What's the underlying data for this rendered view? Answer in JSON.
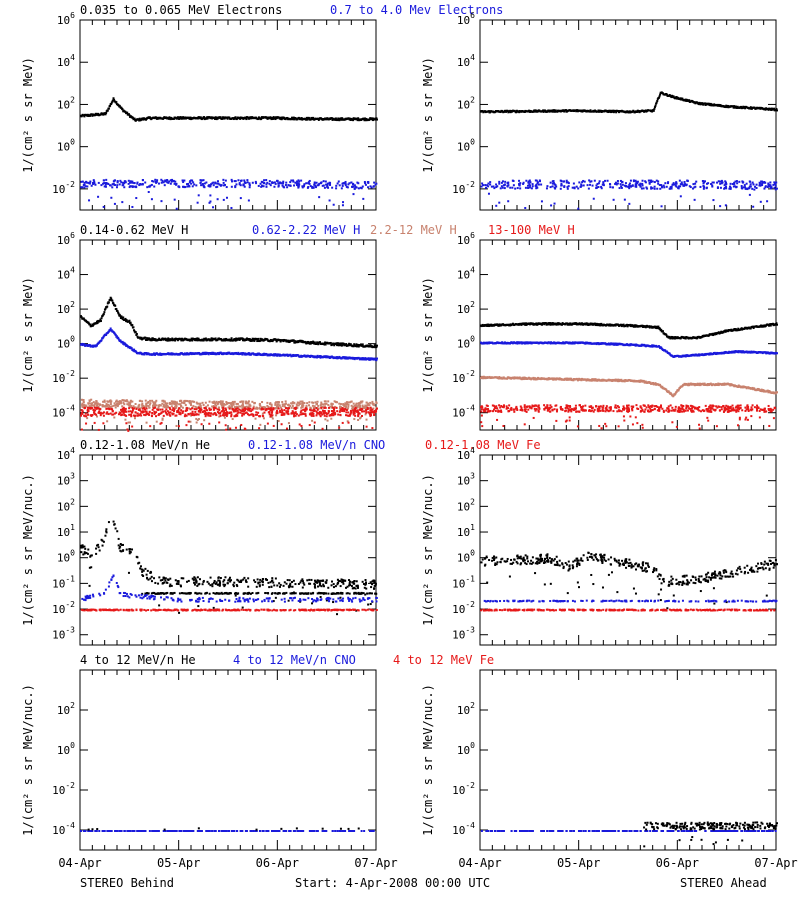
{
  "colors": {
    "black": "#000000",
    "blue": "#1a1adc",
    "tan": "#c8826e",
    "red": "#e61919",
    "axis": "#000000"
  },
  "footer": {
    "left": "STEREO Behind",
    "center": "Start:  4-Apr-2008 00:00 UTC",
    "right": "STEREO Ahead"
  },
  "chart_data": {
    "type": "scatter",
    "x_axis": {
      "ticks": [
        "04-Apr",
        "05-Apr",
        "06-Apr",
        "07-Apr"
      ],
      "range_days": [
        0,
        3
      ]
    },
    "rows": [
      {
        "id": "electrons",
        "ylabel": "1/(cm² s sr MeV)",
        "ylog": true,
        "ylim_exp": [
          -3,
          6
        ],
        "tick_exps": [
          -2,
          0,
          2,
          4,
          6
        ],
        "legend": [
          {
            "text": "0.035 to 0.065 MeV Electrons",
            "color": "black"
          },
          {
            "text": "0.7 to 4.0 Mev Electrons",
            "color": "blue"
          }
        ],
        "panels": {
          "behind": {
            "series": [
              {
                "color": "black",
                "points": [
                  [
                    0,
                    1.5
                  ],
                  [
                    0.25,
                    1.6
                  ],
                  [
                    0.33,
                    2.3
                  ],
                  [
                    0.42,
                    1.8
                  ],
                  [
                    0.55,
                    1.3
                  ],
                  [
                    0.7,
                    1.4
                  ],
                  [
                    1.0,
                    1.4
                  ],
                  [
                    1.5,
                    1.4
                  ],
                  [
                    2.0,
                    1.4
                  ],
                  [
                    2.5,
                    1.35
                  ],
                  [
                    3.0,
                    1.35
                  ]
                ],
                "jitter": 0.05,
                "style": "line"
              },
              {
                "color": "blue",
                "points": [
                  [
                    0,
                    -1.7
                  ],
                  [
                    1.0,
                    -1.7
                  ],
                  [
                    2.0,
                    -1.7
                  ],
                  [
                    3.0,
                    -1.8
                  ]
                ],
                "jitter": 0.18,
                "style": "scatter",
                "n": 420
              }
            ]
          },
          "ahead": {
            "series": [
              {
                "color": "black",
                "points": [
                  [
                    0,
                    1.7
                  ],
                  [
                    1.0,
                    1.75
                  ],
                  [
                    1.5,
                    1.7
                  ],
                  [
                    1.75,
                    1.75
                  ],
                  [
                    1.82,
                    2.6
                  ],
                  [
                    1.95,
                    2.4
                  ],
                  [
                    2.2,
                    2.1
                  ],
                  [
                    2.5,
                    1.95
                  ],
                  [
                    3.0,
                    1.8
                  ]
                ],
                "jitter": 0.04,
                "style": "line"
              },
              {
                "color": "blue",
                "points": [
                  [
                    0,
                    -1.75
                  ],
                  [
                    1.0,
                    -1.75
                  ],
                  [
                    2.0,
                    -1.75
                  ],
                  [
                    3.0,
                    -1.8
                  ]
                ],
                "jitter": 0.2,
                "style": "scatter",
                "n": 420
              }
            ]
          }
        }
      },
      {
        "id": "protons",
        "ylabel": "1/(cm² s sr MeV)",
        "ylog": true,
        "ylim_exp": [
          -5,
          6
        ],
        "tick_exps": [
          -4,
          -2,
          0,
          2,
          4,
          6
        ],
        "legend": [
          {
            "text": "0.14-0.62 MeV H",
            "color": "black"
          },
          {
            "text": "0.62-2.22 MeV H",
            "color": "blue"
          },
          {
            "text": "2.2-12 MeV H",
            "color": "tan"
          },
          {
            "text": "13-100 MeV H",
            "color": "red"
          }
        ],
        "panels": {
          "behind": {
            "series": [
              {
                "color": "black",
                "points": [
                  [
                    0,
                    1.6
                  ],
                  [
                    0.1,
                    1.1
                  ],
                  [
                    0.2,
                    1.4
                  ],
                  [
                    0.3,
                    2.7
                  ],
                  [
                    0.4,
                    1.6
                  ],
                  [
                    0.5,
                    1.3
                  ],
                  [
                    0.58,
                    0.4
                  ],
                  [
                    0.7,
                    0.3
                  ],
                  [
                    1.2,
                    0.3
                  ],
                  [
                    1.6,
                    0.3
                  ],
                  [
                    2.0,
                    0.25
                  ],
                  [
                    2.5,
                    0.05
                  ],
                  [
                    3.0,
                    -0.1
                  ]
                ],
                "jitter": 0.07,
                "style": "line"
              },
              {
                "color": "blue",
                "points": [
                  [
                    0,
                    0.0
                  ],
                  [
                    0.15,
                    -0.1
                  ],
                  [
                    0.3,
                    0.9
                  ],
                  [
                    0.4,
                    0.2
                  ],
                  [
                    0.58,
                    -0.5
                  ],
                  [
                    0.7,
                    -0.55
                  ],
                  [
                    1.5,
                    -0.5
                  ],
                  [
                    2.0,
                    -0.6
                  ],
                  [
                    3.0,
                    -0.85
                  ]
                ],
                "jitter": 0.05,
                "style": "line"
              },
              {
                "color": "tan",
                "points": [
                  [
                    0,
                    -3.4
                  ],
                  [
                    1.5,
                    -3.5
                  ],
                  [
                    3.0,
                    -3.5
                  ]
                ],
                "jitter": 0.22,
                "style": "scatter",
                "n": 650
              },
              {
                "color": "red",
                "points": [
                  [
                    0,
                    -3.9
                  ],
                  [
                    1.5,
                    -3.9
                  ],
                  [
                    3.0,
                    -3.9
                  ]
                ],
                "jitter": 0.25,
                "style": "scatter",
                "n": 650
              }
            ]
          },
          "ahead": {
            "series": [
              {
                "color": "black",
                "points": [
                  [
                    0,
                    1.1
                  ],
                  [
                    0.5,
                    1.2
                  ],
                  [
                    1.0,
                    1.2
                  ],
                  [
                    1.5,
                    1.1
                  ],
                  [
                    1.8,
                    1.0
                  ],
                  [
                    1.9,
                    0.4
                  ],
                  [
                    2.2,
                    0.4
                  ],
                  [
                    2.5,
                    0.8
                  ],
                  [
                    3.0,
                    1.2
                  ]
                ],
                "jitter": 0.05,
                "style": "line"
              },
              {
                "color": "blue",
                "points": [
                  [
                    0,
                    0.1
                  ],
                  [
                    0.5,
                    0.1
                  ],
                  [
                    1.0,
                    0.1
                  ],
                  [
                    1.5,
                    0.0
                  ],
                  [
                    1.8,
                    -0.1
                  ],
                  [
                    1.95,
                    -0.7
                  ],
                  [
                    2.2,
                    -0.6
                  ],
                  [
                    2.6,
                    -0.4
                  ],
                  [
                    3.0,
                    -0.5
                  ]
                ],
                "jitter": 0.04,
                "style": "line"
              },
              {
                "color": "tan",
                "points": [
                  [
                    0,
                    -1.9
                  ],
                  [
                    0.8,
                    -2.0
                  ],
                  [
                    1.6,
                    -2.1
                  ],
                  [
                    1.8,
                    -2.3
                  ],
                  [
                    1.95,
                    -2.95
                  ],
                  [
                    2.05,
                    -2.3
                  ],
                  [
                    2.5,
                    -2.3
                  ],
                  [
                    3.0,
                    -2.8
                  ]
                ],
                "jitter": 0.05,
                "style": "line"
              },
              {
                "color": "red",
                "points": [
                  [
                    0,
                    -3.7
                  ],
                  [
                    1.5,
                    -3.7
                  ],
                  [
                    3.0,
                    -3.7
                  ]
                ],
                "jitter": 0.2,
                "style": "scatter",
                "n": 550
              }
            ]
          }
        }
      },
      {
        "id": "heavy_low",
        "ylabel": "1/(cm² s sr MeV/nuc.)",
        "ylog": true,
        "ylim_exp": [
          -3.4,
          4
        ],
        "tick_exps": [
          -3,
          -2,
          -1,
          0,
          1,
          2,
          3,
          4
        ],
        "legend": [
          {
            "text": "0.12-1.08 MeV/n He",
            "color": "black"
          },
          {
            "text": "0.12-1.08 MeV/n CNO",
            "color": "blue"
          },
          {
            "text": "0.12-1.08 MeV Fe",
            "color": "red"
          }
        ],
        "panels": {
          "behind": {
            "series": [
              {
                "color": "black",
                "points": [
                  [
                    0,
                    0.4
                  ],
                  [
                    0.1,
                    0.1
                  ],
                  [
                    0.2,
                    0.5
                  ],
                  [
                    0.32,
                    1.6
                  ],
                  [
                    0.4,
                    0.4
                  ],
                  [
                    0.55,
                    0.2
                  ],
                  [
                    0.62,
                    -0.5
                  ],
                  [
                    0.8,
                    -0.9
                  ],
                  [
                    1.5,
                    -0.9
                  ],
                  [
                    2.2,
                    -0.95
                  ],
                  [
                    3.0,
                    -1.0
                  ]
                ],
                "jitter": 0.18,
                "style": "scatter",
                "n": 380
              },
              {
                "color": "black",
                "points": [
                  [
                    0.62,
                    -1.35
                  ],
                  [
                    3.0,
                    -1.35
                  ]
                ],
                "jitter": 0.02,
                "style": "scatter",
                "n": 200
              },
              {
                "color": "blue",
                "points": [
                  [
                    0,
                    -1.6
                  ],
                  [
                    0.25,
                    -1.3
                  ],
                  [
                    0.33,
                    -0.6
                  ],
                  [
                    0.4,
                    -1.4
                  ],
                  [
                    1.0,
                    -1.6
                  ],
                  [
                    3.0,
                    -1.6
                  ]
                ],
                "jitter": 0.08,
                "style": "scatter",
                "n": 200
              },
              {
                "color": "red",
                "points": [
                  [
                    0,
                    -2.0
                  ],
                  [
                    3.0,
                    -2.0
                  ]
                ],
                "jitter": 0.02,
                "style": "scatter",
                "n": 300
              }
            ]
          },
          "ahead": {
            "series": [
              {
                "color": "black",
                "points": [
                  [
                    0,
                    -0.1
                  ],
                  [
                    0.7,
                    0.0
                  ],
                  [
                    0.9,
                    -0.3
                  ],
                  [
                    1.1,
                    0.1
                  ],
                  [
                    1.5,
                    -0.2
                  ],
                  [
                    1.75,
                    -0.4
                  ],
                  [
                    1.85,
                    -0.9
                  ],
                  [
                    2.2,
                    -0.8
                  ],
                  [
                    2.6,
                    -0.5
                  ],
                  [
                    3.0,
                    -0.2
                  ]
                ],
                "jitter": 0.18,
                "style": "scatter",
                "n": 420
              },
              {
                "color": "blue",
                "points": [
                  [
                    0,
                    -1.65
                  ],
                  [
                    3.0,
                    -1.65
                  ]
                ],
                "jitter": 0.02,
                "style": "scatter",
                "n": 150
              },
              {
                "color": "red",
                "points": [
                  [
                    0,
                    -2.0
                  ],
                  [
                    3.0,
                    -2.0
                  ]
                ],
                "jitter": 0.02,
                "style": "scatter",
                "n": 300
              }
            ]
          }
        }
      },
      {
        "id": "heavy_high",
        "ylabel": "1/(cm² s sr MeV/nuc.)",
        "ylog": true,
        "ylim_exp": [
          -5,
          4
        ],
        "tick_exps": [
          -4,
          -2,
          0,
          2
        ],
        "legend": [
          {
            "text": "4 to 12 MeV/n He",
            "color": "black"
          },
          {
            "text": "4 to 12 MeV/n CNO",
            "color": "blue"
          },
          {
            "text": "4 to 12 MeV Fe",
            "color": "red"
          }
        ],
        "panels": {
          "behind": {
            "series": [
              {
                "color": "blue",
                "points": [
                  [
                    0,
                    -4.0
                  ],
                  [
                    3.0,
                    -4.0
                  ]
                ],
                "jitter": 0.0,
                "style": "scatter",
                "n": 220
              },
              {
                "color": "black",
                "points": [
                  [
                    0,
                    -3.9
                  ],
                  [
                    3.0,
                    -3.9
                  ]
                ],
                "jitter": 0.05,
                "style": "scatter",
                "n": 12
              }
            ]
          },
          "ahead": {
            "series": [
              {
                "color": "blue",
                "points": [
                  [
                    0,
                    -4.0
                  ],
                  [
                    3.0,
                    -4.0
                  ]
                ],
                "jitter": 0.0,
                "style": "scatter",
                "n": 220
              },
              {
                "color": "black",
                "points": [
                  [
                    1.65,
                    -3.75
                  ],
                  [
                    3.0,
                    -3.75
                  ]
                ],
                "jitter": 0.18,
                "style": "scatter",
                "n": 200
              }
            ]
          }
        }
      }
    ]
  }
}
